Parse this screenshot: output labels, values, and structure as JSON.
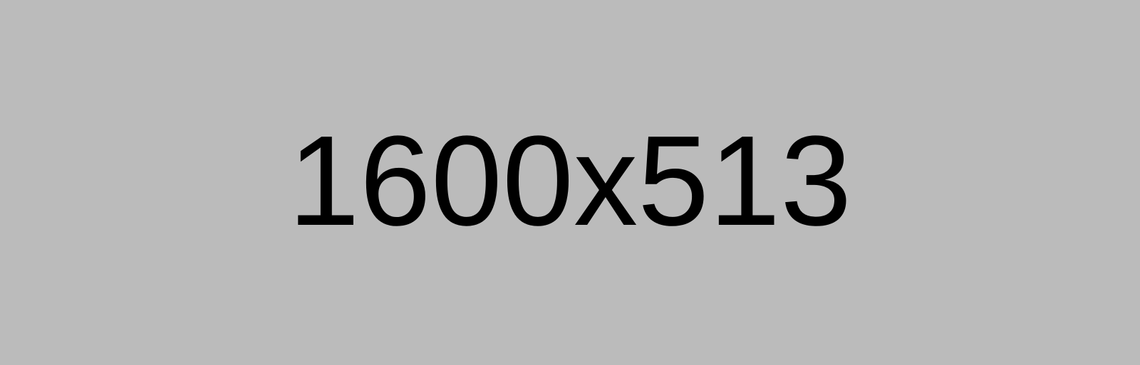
{
  "placeholder": {
    "label": "1600x513",
    "background_color": "#bbbbbb",
    "text_color": "#000000"
  }
}
